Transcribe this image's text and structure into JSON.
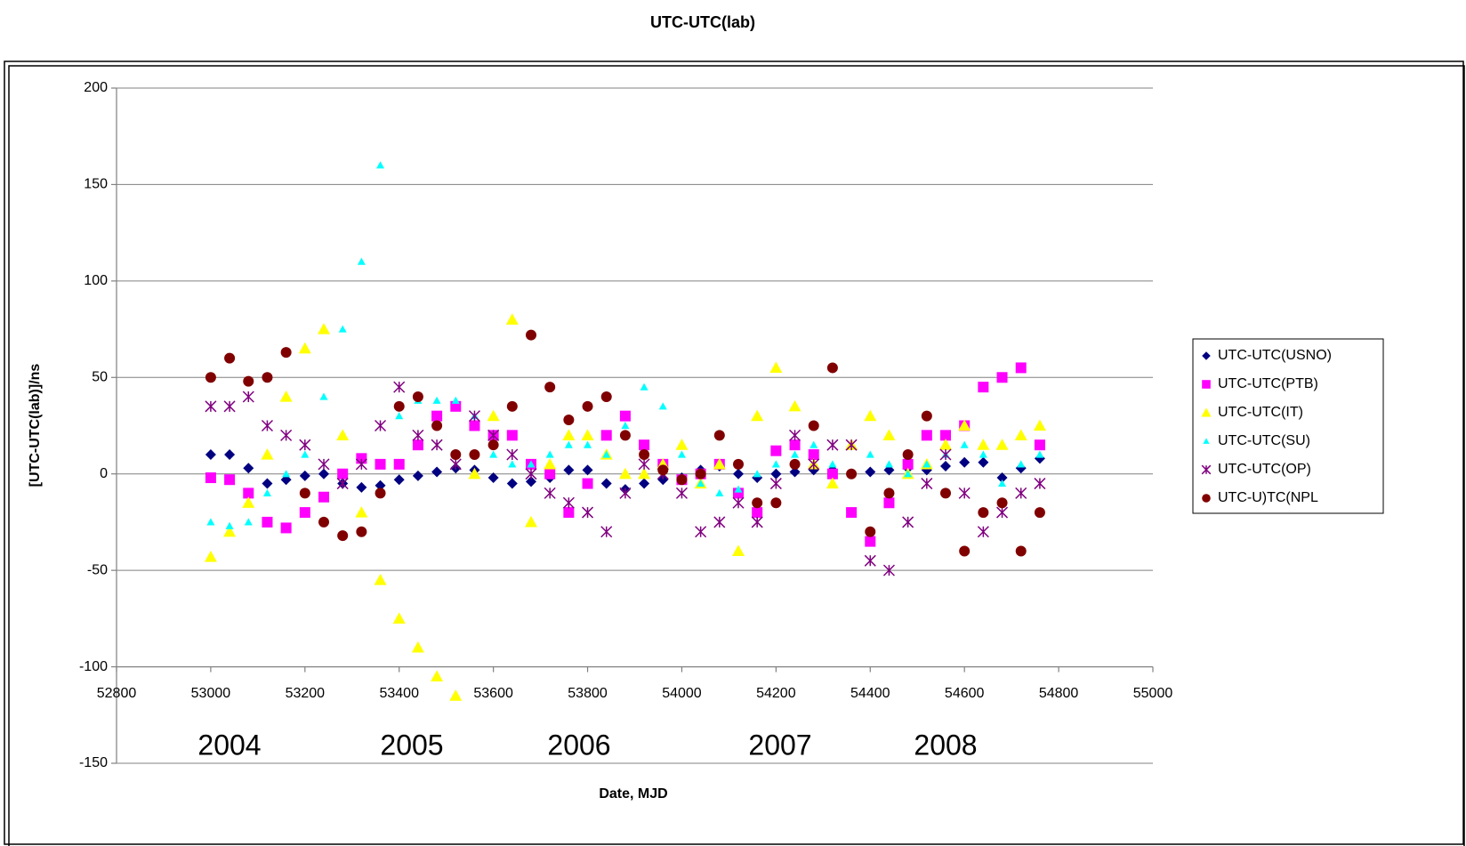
{
  "chart_data": {
    "type": "scatter",
    "title": "UTC-UTC(lab)",
    "x_label": "Date, MJD",
    "y_label": "[UTC-UTC(lab)]/ns",
    "annotations": [
      "2004",
      "2005",
      "2006",
      "2007",
      "2008"
    ],
    "xlim": [
      52800,
      55000
    ],
    "xticks": [
      52800,
      53000,
      53200,
      53400,
      53600,
      53800,
      54000,
      54200,
      54400,
      54600,
      54800,
      55000
    ],
    "ylim": [
      -150,
      200
    ],
    "yticks": [
      -150,
      -100,
      -50,
      0,
      50,
      100,
      150,
      200
    ],
    "x_axis_crosses": -100,
    "grid": true,
    "legend": "right",
    "x": [
      53000,
      53040,
      53080,
      53120,
      53160,
      53200,
      53240,
      53280,
      53320,
      53360,
      53400,
      53440,
      53480,
      53520,
      53560,
      53600,
      53640,
      53680,
      53720,
      53760,
      53800,
      53840,
      53880,
      53920,
      53960,
      54000,
      54040,
      54080,
      54120,
      54160,
      54200,
      54240,
      54280,
      54320,
      54360,
      54400,
      54440,
      54480,
      54520,
      54560,
      54600,
      54640,
      54680,
      54720,
      54760
    ],
    "series": [
      {
        "name": "UTC-UTC(USNO)",
        "color": "#000080",
        "marker": "diamond",
        "values": [
          10,
          10,
          3,
          -5,
          -3,
          -1,
          0,
          -5,
          -7,
          -6,
          -3,
          -1,
          1,
          3,
          2,
          -2,
          -5,
          -4,
          -2,
          2,
          2,
          -5,
          -8,
          -5,
          -3,
          -2,
          2,
          4,
          0,
          -2,
          0,
          1,
          2,
          2,
          0,
          1,
          2,
          3,
          2,
          4,
          6,
          6,
          -2,
          3,
          8
        ]
      },
      {
        "name": "UTC-UTC(PTB)",
        "color": "#ff00ff",
        "marker": "square",
        "values": [
          -2,
          -3,
          -10,
          -25,
          -28,
          -20,
          -12,
          0,
          8,
          5,
          5,
          15,
          30,
          35,
          25,
          20,
          20,
          5,
          0,
          -20,
          -5,
          20,
          30,
          15,
          5,
          -3,
          0,
          5,
          -10,
          -20,
          12,
          15,
          10,
          0,
          -20,
          -35,
          -15,
          5,
          20,
          20,
          25,
          45,
          50,
          55,
          15
        ]
      },
      {
        "name": "UTC-UTC(IT)",
        "color": "#ffff00",
        "marker": "triangle",
        "values": [
          -43,
          -30,
          -15,
          10,
          40,
          65,
          75,
          20,
          -20,
          -55,
          -75,
          -90,
          -105,
          -115,
          0,
          30,
          80,
          -25,
          5,
          20,
          20,
          10,
          0,
          0,
          5,
          15,
          -5,
          5,
          -40,
          30,
          55,
          35,
          5,
          -5,
          15,
          30,
          20,
          0,
          5,
          15,
          25,
          15,
          15,
          20,
          25
        ]
      },
      {
        "name": "UTC-UTC(SU)",
        "color": "#00ffff",
        "marker": "small-triangle",
        "values": [
          -25,
          -27,
          -25,
          -10,
          0,
          10,
          40,
          75,
          110,
          160,
          30,
          38,
          38,
          38,
          30,
          10,
          5,
          5,
          10,
          15,
          15,
          10,
          25,
          45,
          35,
          10,
          -5,
          -10,
          -8,
          0,
          5,
          10,
          15,
          5,
          0,
          10,
          5,
          0,
          5,
          10,
          15,
          10,
          -5,
          5,
          10
        ]
      },
      {
        "name": "UTC-UTC(OP)",
        "color": "#800080",
        "marker": "star",
        "values": [
          35,
          35,
          40,
          25,
          20,
          15,
          5,
          -5,
          5,
          25,
          45,
          20,
          15,
          5,
          30,
          20,
          10,
          0,
          -10,
          -15,
          -20,
          -30,
          -10,
          5,
          0,
          -10,
          -30,
          -25,
          -15,
          -25,
          -5,
          20,
          5,
          15,
          15,
          -45,
          -50,
          -25,
          -5,
          10,
          -10,
          -30,
          -20,
          -10,
          -5
        ]
      },
      {
        "name": "UTC-U)TC(NPL",
        "color": "#800000",
        "marker": "circle",
        "values": [
          50,
          60,
          48,
          50,
          63,
          -10,
          -25,
          -32,
          -30,
          -10,
          35,
          40,
          25,
          10,
          10,
          15,
          35,
          72,
          45,
          28,
          35,
          40,
          20,
          10,
          2,
          -3,
          0,
          20,
          5,
          -15,
          -15,
          5,
          25,
          55,
          0,
          -30,
          -10,
          10,
          30,
          -10,
          -40,
          -20,
          -15,
          -40,
          -20
        ]
      }
    ]
  }
}
